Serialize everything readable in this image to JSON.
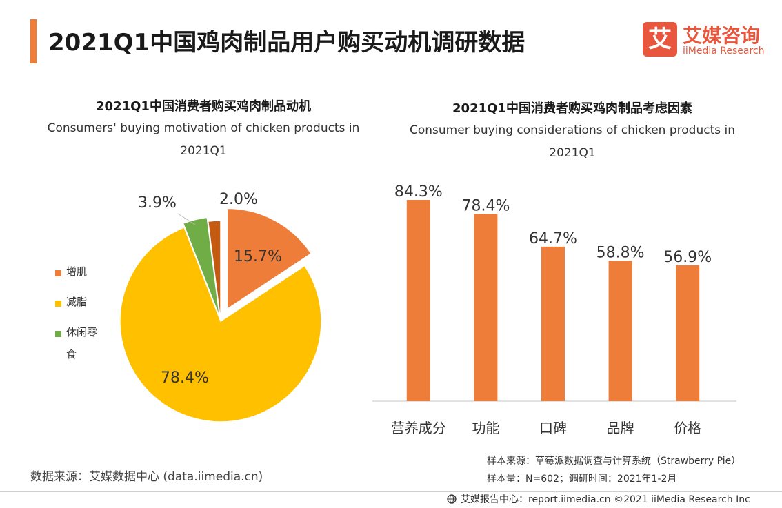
{
  "header": {
    "title": "2021Q1中国鸡肉制品用户购买动机调研数据",
    "logo_mark": "艾",
    "logo_cn": "艾媒咨询",
    "logo_en": "iiMedia Research"
  },
  "colors": {
    "accent": "#ee7d3a",
    "logo": "#e8573d",
    "pie": [
      "#ee7d3a",
      "#ffc000",
      "#70ad47",
      "#c55a11"
    ]
  },
  "left_chart": {
    "title": "2021Q1中国消费者购买鸡肉制品动机",
    "subtitle_line1": "Consumers' buying motivation of chicken products in",
    "subtitle_line2": "2021Q1"
  },
  "right_chart": {
    "title": "2021Q1中国消费者购买鸡肉制品考虑因素",
    "subtitle_line1": "Consumer buying considerations of chicken products in",
    "subtitle_line2": "2021Q1"
  },
  "chart_data": [
    {
      "type": "pie",
      "title": "2021Q1中国消费者购买鸡肉制品动机",
      "slices": [
        {
          "label": "增肌",
          "value": 15.7,
          "display": "15.7%"
        },
        {
          "label": "减脂",
          "value": 78.4,
          "display": "78.4%"
        },
        {
          "label": "休闲零食",
          "value": 3.9,
          "display": "3.9%"
        },
        {
          "label": "",
          "value": 2.0,
          "display": "2.0%"
        }
      ],
      "legend": [
        "增肌",
        "减脂",
        "休闲零食"
      ],
      "legend_position": "left"
    },
    {
      "type": "bar",
      "title": "2021Q1中国消费者购买鸡肉制品考虑因素",
      "categories": [
        "营养成分",
        "功能",
        "口碑",
        "品牌",
        "价格"
      ],
      "values": [
        84.3,
        78.4,
        64.7,
        58.8,
        56.9
      ],
      "labels": [
        "84.3%",
        "78.4%",
        "64.7%",
        "58.8%",
        "56.9%"
      ],
      "ylim": [
        0,
        84.3
      ],
      "grid": false
    }
  ],
  "footer": {
    "source": "数据来源：艾媒数据中心 (data.iimedia.cn)",
    "sample_source": "样本来源：草莓派数据调查与计算系统（Strawberry Pie）",
    "sample_size": "样本量：N=602；调研时间：2021年1-2月",
    "copyright": "艾媒报告中心：report.iimedia.cn   ©2021  iiMedia Research  Inc"
  }
}
